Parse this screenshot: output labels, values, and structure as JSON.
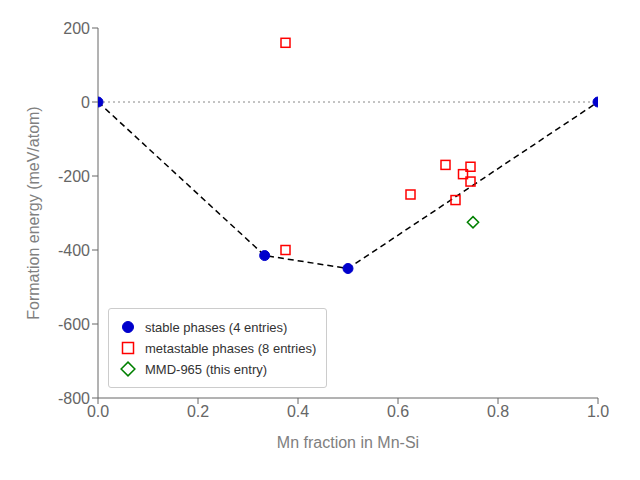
{
  "chart_data": {
    "type": "scatter",
    "title": "",
    "xlabel": "Mn fraction in Mn-Si",
    "ylabel": "Formation energy (meV/atom)",
    "xlim": [
      0.0,
      1.0
    ],
    "ylim": [
      -800,
      200
    ],
    "xticks": [
      {
        "value": 0.0,
        "label": "0.0"
      },
      0.2,
      0.4,
      0.6,
      0.8,
      {
        "value": 1.0,
        "label": "1.0"
      }
    ],
    "yticks": [
      -800,
      -600,
      -400,
      -200,
      0,
      200
    ],
    "legend": "lower left",
    "grid": false,
    "hlines": [
      {
        "y": 0,
        "color": "#888888",
        "line_style": "dotted"
      }
    ],
    "series": [
      {
        "type": "line",
        "color": "black",
        "line_style": "dashed",
        "x": [
          0.0,
          0.3333,
          0.5,
          1.0
        ],
        "values": [
          0.0,
          -415.0,
          -450.0,
          0.0
        ]
      },
      {
        "name": "stable phases (4 entries)",
        "type": "scatter",
        "color": "#0000cc",
        "marker": "circle",
        "x": [
          0.0,
          0.3333,
          0.5,
          1.0
        ],
        "values": [
          0.0,
          -415.0,
          -450.0,
          0.0
        ]
      },
      {
        "name": "metastable phases (8 entries)",
        "type": "scatter",
        "color": "red",
        "marker": "square-open",
        "x": [
          0.375,
          0.375,
          0.625,
          0.695,
          0.715,
          0.73,
          0.745,
          0.745
        ],
        "values": [
          -400.0,
          160.0,
          -250.0,
          -170.0,
          -265.0,
          -195.0,
          -175.0,
          -215.0
        ]
      },
      {
        "name": "MMD-965 (this entry)",
        "type": "scatter",
        "color": "green",
        "marker": "diamond-open",
        "x": [
          0.75
        ],
        "values": [
          -325.0
        ]
      }
    ]
  }
}
